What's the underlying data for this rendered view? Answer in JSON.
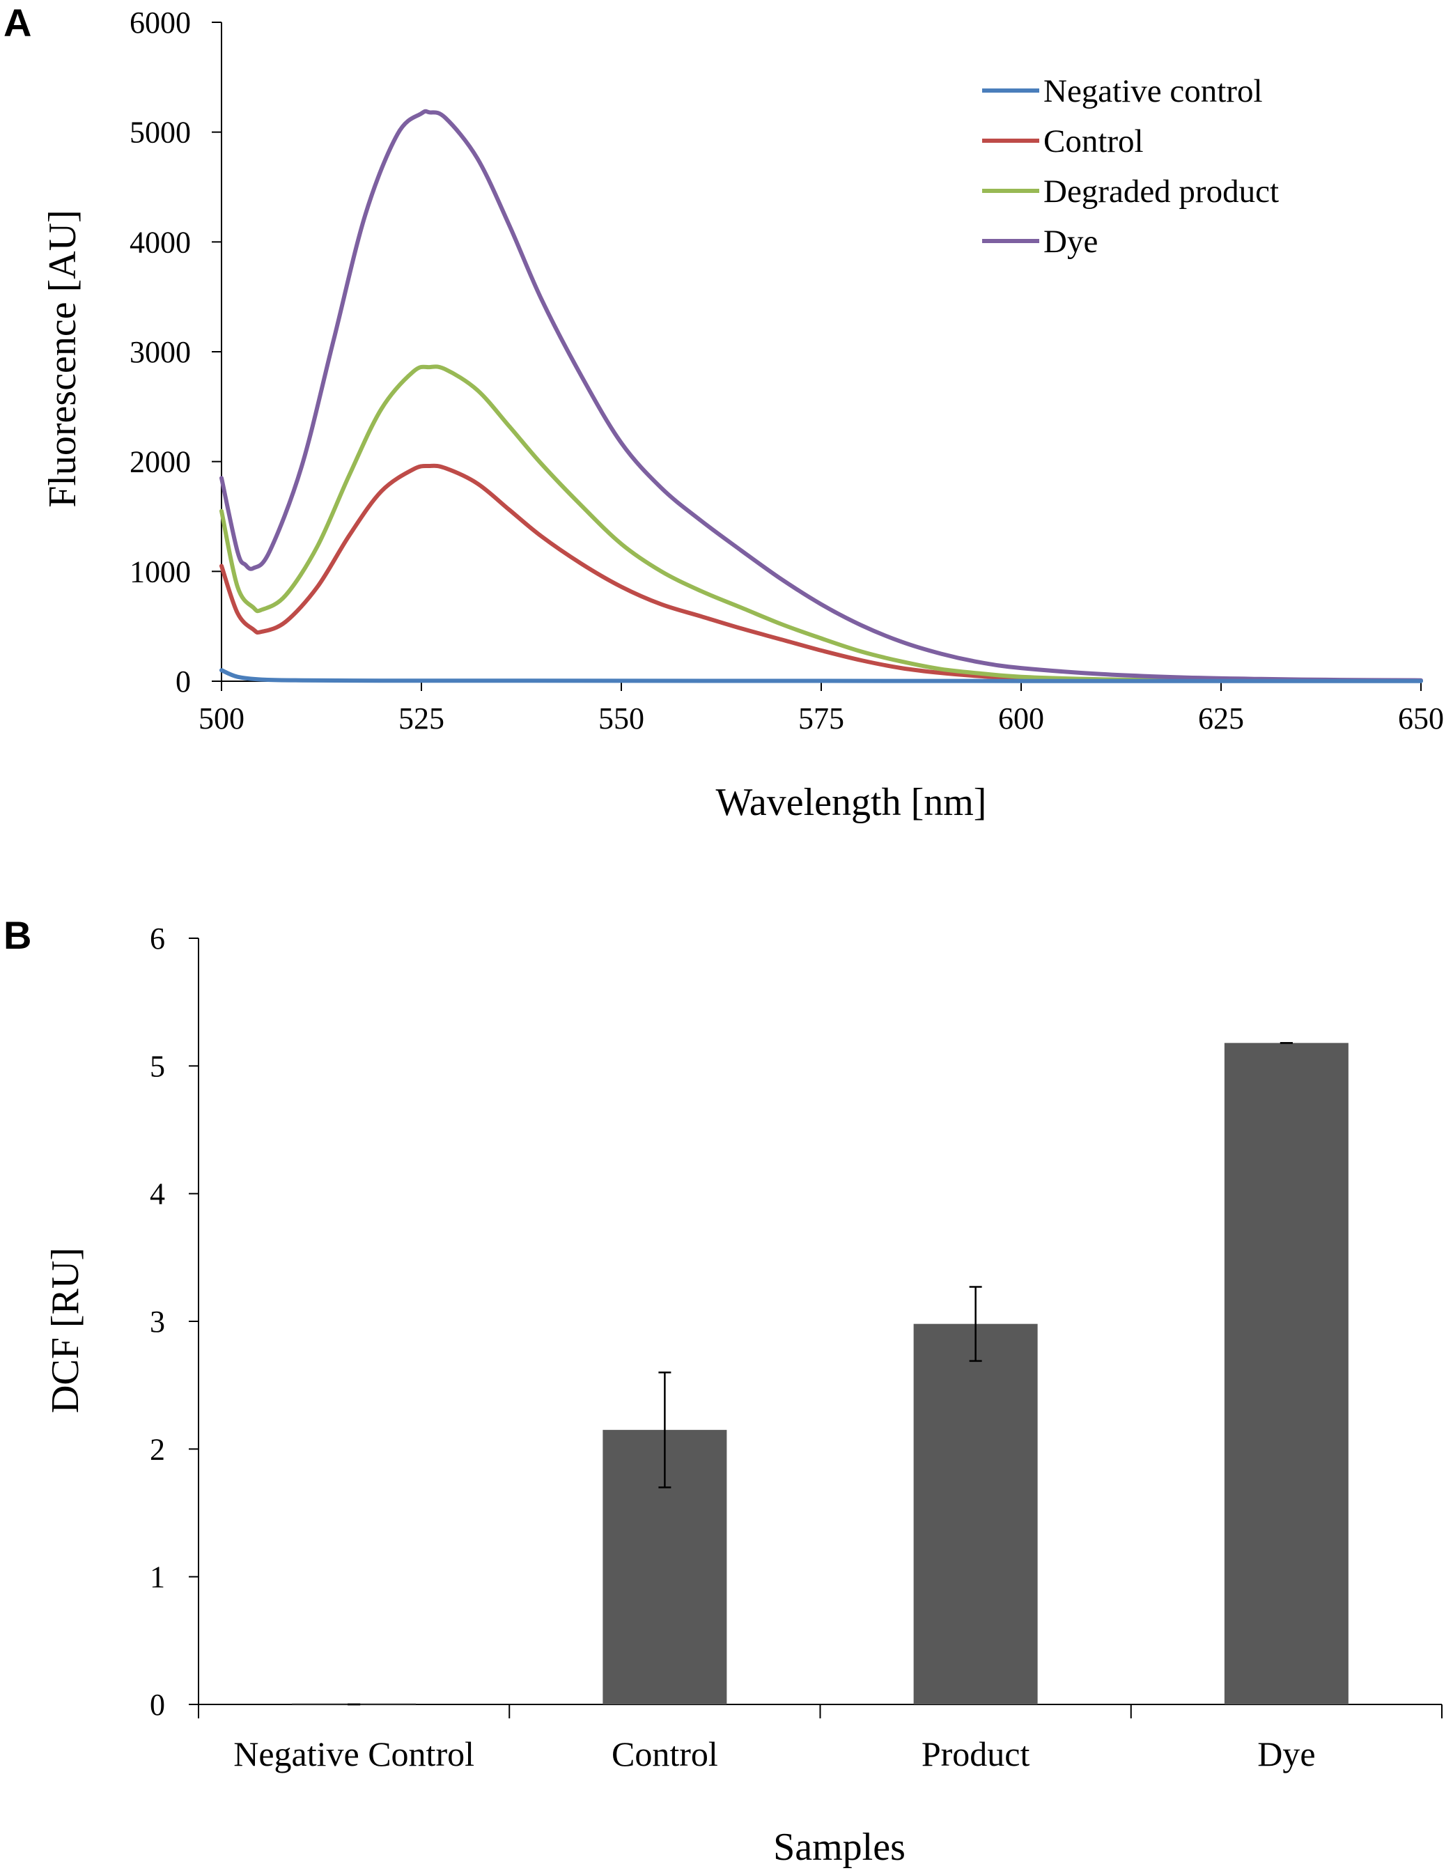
{
  "chart_data": [
    {
      "panel": "A",
      "type": "line",
      "xlabel": "Wavelength [nm]",
      "ylabel": "Fluorescence [AU]",
      "xlim": [
        500,
        650
      ],
      "ylim": [
        0,
        6000
      ],
      "xticks": [
        500,
        525,
        550,
        575,
        600,
        625,
        650
      ],
      "yticks": [
        0,
        1000,
        2000,
        3000,
        4000,
        5000,
        6000
      ],
      "legend_position": "top-right",
      "series": [
        {
          "name": "Negative control",
          "color": "#4a7ebb",
          "x": [
            500,
            502,
            505,
            510,
            520,
            530,
            550,
            575,
            600,
            625,
            650
          ],
          "y": [
            100,
            40,
            15,
            8,
            5,
            5,
            4,
            3,
            2,
            2,
            2
          ]
        },
        {
          "name": "Control",
          "color": "#be4b48",
          "x": [
            500,
            502,
            504,
            505,
            508,
            512,
            516,
            520,
            524,
            526,
            528,
            532,
            536,
            540,
            545,
            550,
            555,
            560,
            565,
            570,
            575,
            580,
            585,
            590,
            595,
            600,
            610,
            620,
            630,
            640,
            650
          ],
          "y": [
            1050,
            620,
            470,
            450,
            540,
            860,
            1330,
            1730,
            1930,
            1960,
            1940,
            1800,
            1560,
            1320,
            1070,
            860,
            700,
            590,
            480,
            380,
            280,
            190,
            120,
            75,
            45,
            25,
            12,
            8,
            5,
            4,
            3
          ]
        },
        {
          "name": "Degraded product",
          "color": "#98b954",
          "x": [
            500,
            502,
            504,
            505,
            508,
            512,
            516,
            520,
            524,
            526,
            528,
            532,
            536,
            540,
            545,
            550,
            555,
            560,
            565,
            570,
            575,
            580,
            585,
            590,
            595,
            600,
            610,
            620,
            630,
            640,
            650
          ],
          "y": [
            1550,
            860,
            670,
            650,
            780,
            1230,
            1880,
            2480,
            2820,
            2860,
            2840,
            2650,
            2320,
            1980,
            1600,
            1250,
            1000,
            820,
            670,
            520,
            390,
            270,
            180,
            110,
            70,
            40,
            18,
            10,
            6,
            4,
            3
          ]
        },
        {
          "name": "Dye",
          "color": "#7d60a0",
          "x": [
            500,
            502,
            503,
            504,
            506,
            510,
            514,
            518,
            522,
            525,
            526,
            528,
            532,
            536,
            540,
            545,
            550,
            555,
            560,
            565,
            570,
            575,
            580,
            585,
            590,
            595,
            600,
            610,
            620,
            630,
            640,
            650
          ],
          "y": [
            1850,
            1180,
            1060,
            1030,
            1180,
            1950,
            3100,
            4250,
            4980,
            5170,
            5180,
            5130,
            4760,
            4150,
            3480,
            2780,
            2170,
            1760,
            1460,
            1190,
            930,
            700,
            510,
            360,
            250,
            170,
            120,
            65,
            35,
            20,
            12,
            8
          ]
        }
      ]
    },
    {
      "panel": "B",
      "type": "bar",
      "xlabel": "Samples",
      "ylabel": "DCF [RU]",
      "ylim": [
        0,
        6
      ],
      "yticks": [
        0,
        1,
        2,
        3,
        4,
        5,
        6
      ],
      "categories": [
        "Negative Control",
        "Control",
        "Product",
        "Dye"
      ],
      "values": [
        0.0,
        2.15,
        2.98,
        5.18
      ],
      "errors": [
        0.0,
        0.45,
        0.29,
        0.0
      ],
      "bar_color": "#595959"
    }
  ]
}
